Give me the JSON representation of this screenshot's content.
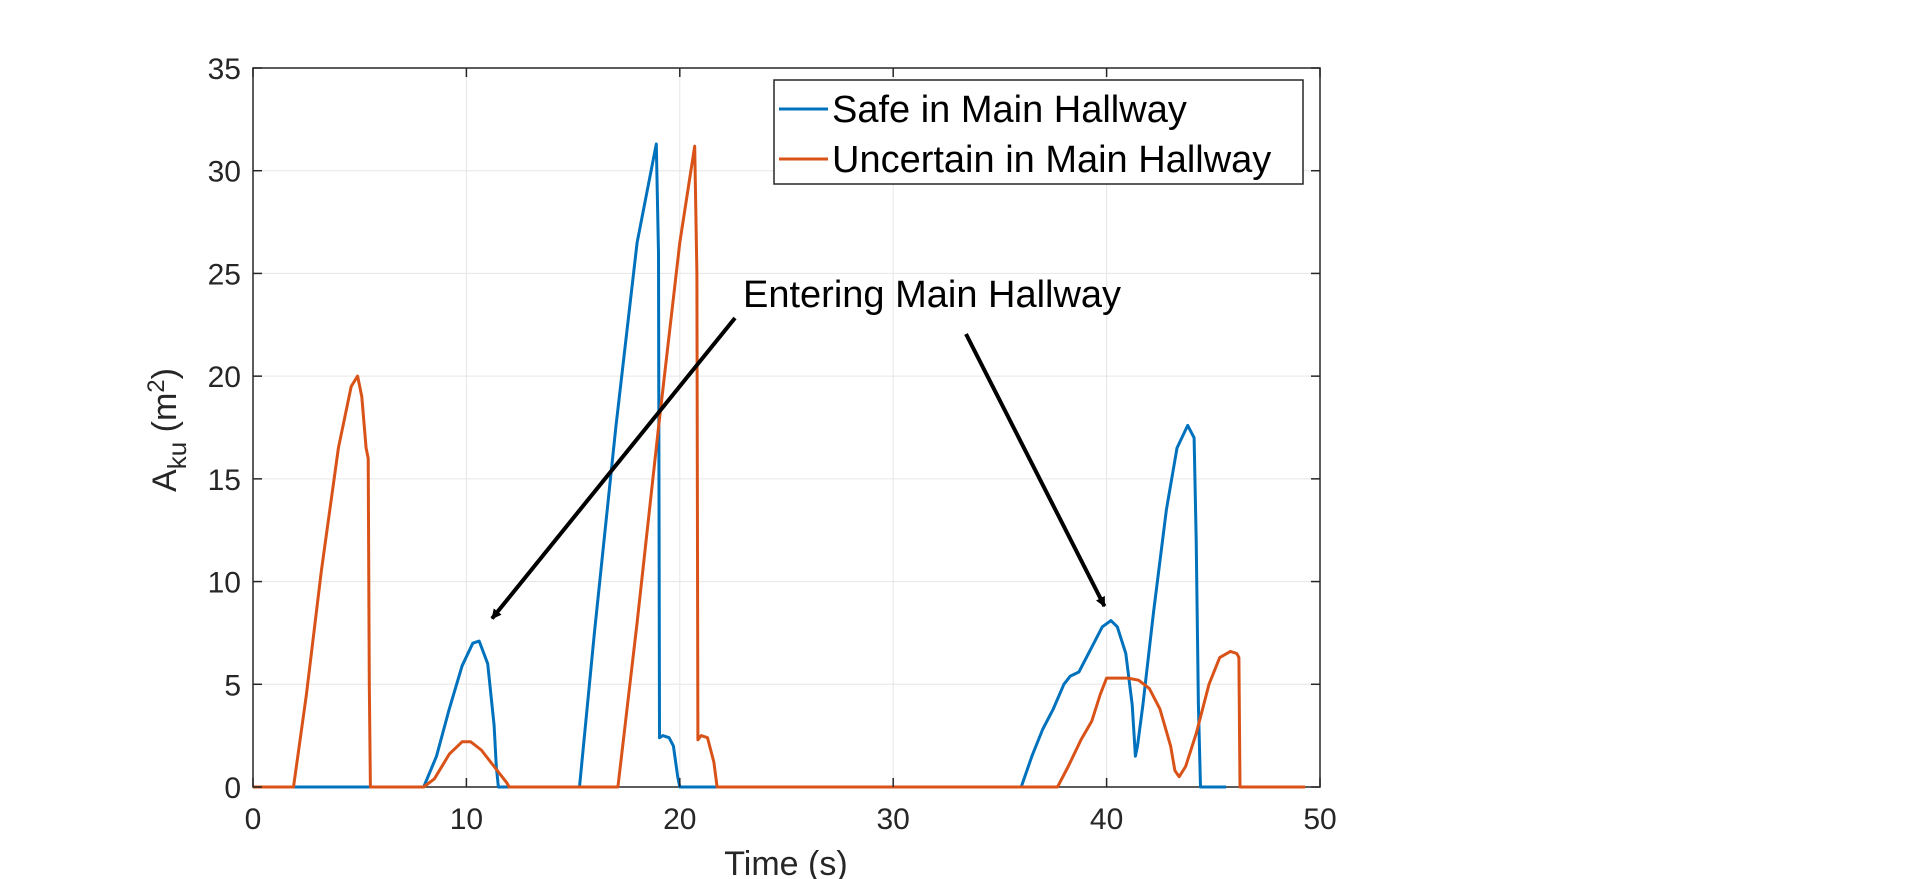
{
  "chart_data": {
    "type": "line",
    "xlabel": "Time (s)",
    "ylabel_main": "A",
    "ylabel_sub": "ku",
    "ylabel_unit_pre": " (m",
    "ylabel_unit_sup": "2",
    "ylabel_unit_post": ")",
    "xlim": [
      0,
      50
    ],
    "ylim": [
      0,
      35
    ],
    "xticks": [
      0,
      10,
      20,
      30,
      40,
      50
    ],
    "yticks": [
      0,
      5,
      10,
      15,
      20,
      25,
      30,
      35
    ],
    "grid": true,
    "legend_position": "top-right",
    "series": [
      {
        "name": "Safe in Main Hallway",
        "color": "#0072BD",
        "x": [
          0,
          8,
          8.6,
          9.2,
          9.8,
          10.3,
          10.6,
          11.0,
          11.3,
          11.4,
          11.5,
          15.3,
          16.0,
          17.0,
          18.0,
          18.9,
          19.0,
          19.05,
          19.2,
          19.5,
          19.7,
          19.9,
          20.0,
          36.0,
          36.5,
          37.0,
          37.5,
          38.0,
          38.3,
          38.7,
          39.3,
          39.8,
          40.2,
          40.5,
          40.9,
          41.2,
          41.35,
          41.45,
          41.7,
          42.2,
          42.8,
          43.3,
          43.8,
          44.1,
          44.2,
          44.3,
          44.4,
          45.6
        ],
        "y": [
          0,
          0,
          1.5,
          3.8,
          5.9,
          7.0,
          7.1,
          6.0,
          3.0,
          1.0,
          0,
          0,
          7.5,
          17.5,
          26.5,
          31.3,
          26.0,
          2.4,
          2.5,
          2.4,
          2.0,
          0.5,
          0,
          0,
          1.5,
          2.8,
          3.8,
          5.0,
          5.4,
          5.6,
          6.8,
          7.8,
          8.1,
          7.8,
          6.5,
          4.0,
          1.5,
          2.0,
          4.0,
          8.5,
          13.5,
          16.5,
          17.6,
          17.0,
          12.0,
          4.0,
          0,
          0
        ]
      },
      {
        "name": "Uncertain in Main Hallway",
        "color": "#D95319",
        "x": [
          0,
          1.9,
          2.5,
          3.2,
          4.0,
          4.6,
          4.9,
          5.1,
          5.3,
          5.4,
          5.45,
          5.5,
          8.0,
          8.5,
          9.2,
          9.8,
          10.2,
          10.7,
          11.3,
          11.9,
          12.0,
          17.1,
          18.0,
          19.0,
          20.0,
          20.7,
          20.8,
          20.85,
          21.0,
          21.3,
          21.6,
          21.75,
          37.7,
          38.2,
          38.8,
          39.3,
          39.7,
          40.0,
          41.0,
          41.5,
          42.0,
          42.5,
          43.0,
          43.2,
          43.4,
          43.7,
          44.2,
          44.8,
          45.3,
          45.8,
          46.1,
          46.2,
          46.25,
          49.3
        ],
        "y": [
          0,
          0,
          4.5,
          10.5,
          16.5,
          19.5,
          20.0,
          19.0,
          16.5,
          16.0,
          5.0,
          0,
          0,
          0.4,
          1.6,
          2.2,
          2.2,
          1.8,
          1.0,
          0.2,
          0,
          0,
          8.0,
          17.5,
          26.5,
          31.2,
          25.0,
          2.3,
          2.5,
          2.4,
          1.2,
          0,
          0,
          1.0,
          2.3,
          3.2,
          4.5,
          5.3,
          5.3,
          5.2,
          4.8,
          3.8,
          2.0,
          0.8,
          0.5,
          1.0,
          2.6,
          5.0,
          6.3,
          6.6,
          6.5,
          6.3,
          0,
          0
        ]
      }
    ],
    "annotation": {
      "text": "Entering Main Hallway",
      "arrow_targets": [
        [
          11.2,
          8.2
        ],
        [
          39.9,
          8.8
        ]
      ]
    }
  }
}
